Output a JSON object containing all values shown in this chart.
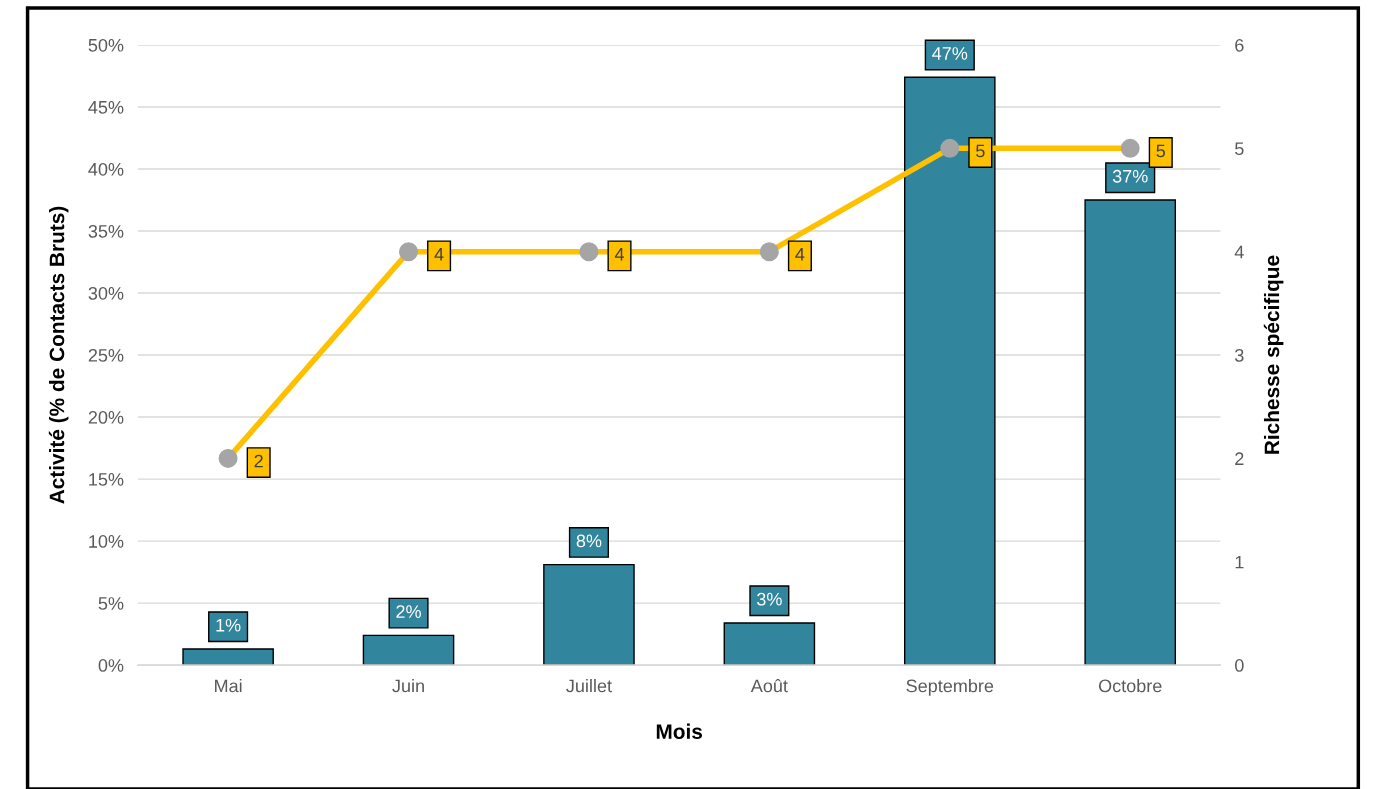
{
  "chart_data": {
    "type": "bar",
    "xlabel": "Mois",
    "ylabel": "Activité (% de Contacts Bruts)",
    "y2label": "Richesse spécifique",
    "categories": [
      "Mai",
      "Juin",
      "Juillet",
      "Août",
      "Septembre",
      "Octobre"
    ],
    "series": [
      {
        "color": "#31859c",
        "values": [
          1.3,
          2.4,
          8.1,
          3.4,
          47.4,
          37.5
        ],
        "value_labels": [
          "1%",
          "2%",
          "8%",
          "3%",
          "47%",
          "37%"
        ]
      },
      {
        "type": "line",
        "axis": "y2",
        "color": "#ffc000",
        "colors": [
          "#a5a5a5",
          "#a5a5a5",
          "#a5a5a5",
          "#a5a5a5",
          "#a5a5a5",
          "#a5a5a5"
        ],
        "values": [
          2,
          4,
          4,
          4,
          5,
          5
        ],
        "value_labels": [
          "2",
          "4",
          "4",
          "4",
          "5",
          "5"
        ]
      }
    ],
    "ylim": [
      0,
      50
    ],
    "yticks": [
      {
        "value": 0,
        "label": "0%"
      },
      {
        "value": 5,
        "label": "5%"
      },
      {
        "value": 10,
        "label": "10%"
      },
      {
        "value": 15,
        "label": "15%"
      },
      {
        "value": 20,
        "label": "20%"
      },
      {
        "value": 25,
        "label": "25%"
      },
      {
        "value": 30,
        "label": "30%"
      },
      {
        "value": 35,
        "label": "35%"
      },
      {
        "value": 40,
        "label": "40%"
      },
      {
        "value": 45,
        "label": "45%"
      },
      {
        "value": 50,
        "label": "50%"
      }
    ],
    "y2lim": [
      0,
      6
    ],
    "y2ticks": [
      0,
      1,
      2,
      3,
      4,
      5,
      6
    ],
    "grid": "y",
    "marker": "circle",
    "line_style": "solid"
  }
}
